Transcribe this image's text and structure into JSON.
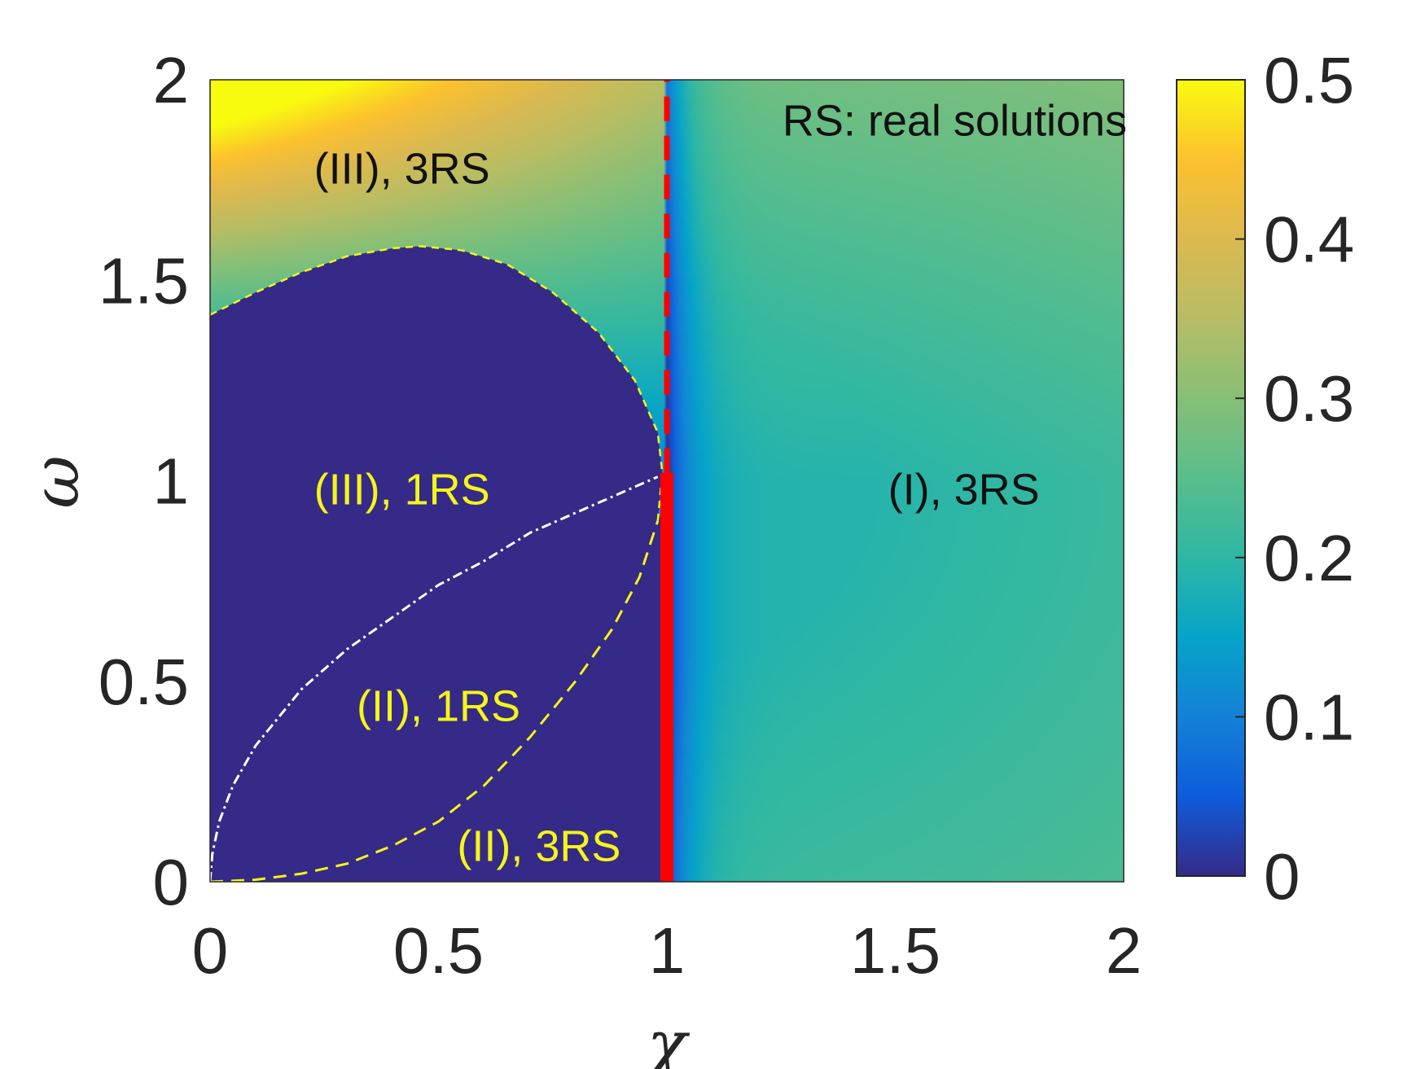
{
  "chart_data": {
    "type": "heatmap",
    "title": "",
    "xlabel": "χ",
    "ylabel": "ω",
    "xlim": [
      0,
      2
    ],
    "ylim": [
      0,
      2
    ],
    "x_ticks": [
      "0",
      "0.5",
      "1",
      "1.5",
      "2"
    ],
    "y_ticks": [
      "0",
      "0.5",
      "1",
      "1.5",
      "2"
    ],
    "colorbar": {
      "range": [
        0,
        0.5
      ],
      "ticks": [
        "0",
        "0.1",
        "0.2",
        "0.3",
        "0.4",
        "0.5"
      ],
      "colormap": "parula"
    },
    "boundaries": {
      "upper_dashed_yellow": {
        "color": "#f5f519",
        "points": [
          [
            0,
            1.414
          ],
          [
            0.1,
            1.47
          ],
          [
            0.2,
            1.52
          ],
          [
            0.3,
            1.56
          ],
          [
            0.4,
            1.58
          ],
          [
            0.46,
            1.585
          ],
          [
            0.55,
            1.575
          ],
          [
            0.65,
            1.54
          ],
          [
            0.75,
            1.47
          ],
          [
            0.85,
            1.37
          ],
          [
            0.93,
            1.25
          ],
          [
            0.98,
            1.12
          ],
          [
            0.99,
            1.02
          ],
          [
            0.98,
            0.9
          ]
        ]
      },
      "lower_dashed_yellow": {
        "color": "#f5f519",
        "points": [
          [
            0,
            0
          ],
          [
            0.1,
            0.005
          ],
          [
            0.2,
            0.02
          ],
          [
            0.3,
            0.045
          ],
          [
            0.4,
            0.09
          ],
          [
            0.5,
            0.15
          ],
          [
            0.6,
            0.24
          ],
          [
            0.7,
            0.36
          ],
          [
            0.8,
            0.5
          ],
          [
            0.88,
            0.63
          ],
          [
            0.94,
            0.76
          ],
          [
            0.98,
            0.9
          ]
        ]
      },
      "dashdot_white": {
        "color": "#ffffff",
        "points": [
          [
            0,
            0
          ],
          [
            0.005,
            0.07
          ],
          [
            0.02,
            0.15
          ],
          [
            0.05,
            0.24
          ],
          [
            0.1,
            0.34
          ],
          [
            0.2,
            0.48
          ],
          [
            0.3,
            0.58
          ],
          [
            0.4,
            0.66
          ],
          [
            0.5,
            0.74
          ],
          [
            0.6,
            0.8
          ],
          [
            0.7,
            0.87
          ],
          [
            0.8,
            0.92
          ],
          [
            0.9,
            0.97
          ],
          [
            0.98,
            1.01
          ]
        ]
      },
      "red_dashed_vertical": {
        "color": "#ff0000",
        "x": 1,
        "y": [
          1.02,
          2
        ]
      },
      "red_solid_vertical": {
        "color": "#ff0000",
        "x": 1,
        "y": [
          0,
          1.02
        ]
      }
    },
    "annotations": [
      {
        "text": "RS: real solutions",
        "x": 1.63,
        "y": 1.9,
        "color": "#111111"
      },
      {
        "text": "(III), 3RS",
        "x": 0.42,
        "y": 1.78,
        "color": "#111111"
      },
      {
        "text": "(III), 1RS",
        "x": 0.42,
        "y": 0.98,
        "color": "#f5f519"
      },
      {
        "text": "(I), 3RS",
        "x": 1.65,
        "y": 0.98,
        "color": "#111111"
      },
      {
        "text": "(II), 1RS",
        "x": 0.5,
        "y": 0.44,
        "color": "#f5f519"
      },
      {
        "text": "(II), 3RS",
        "x": 0.72,
        "y": 0.09,
        "color": "#f5f519"
      }
    ]
  }
}
